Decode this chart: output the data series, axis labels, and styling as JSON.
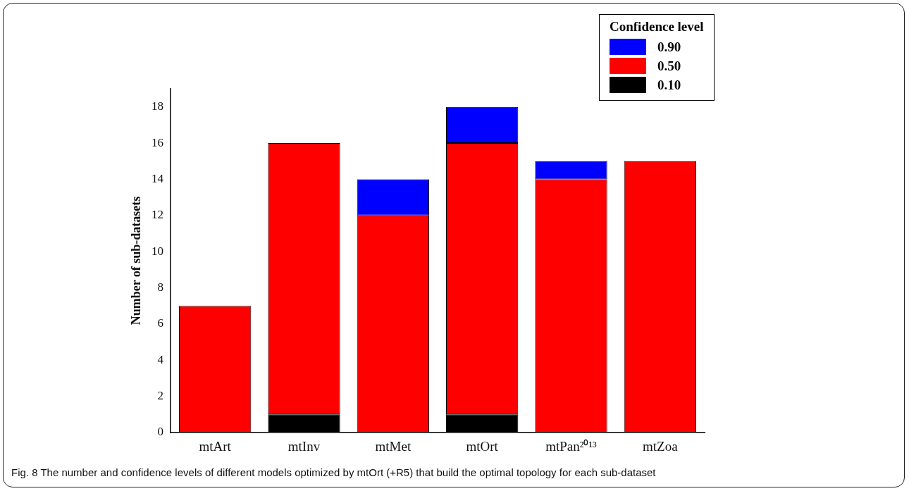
{
  "chart_data": {
    "type": "bar",
    "stacked": true,
    "categories": [
      "mtArt",
      "mtInv",
      "mtMet",
      "mtOrt",
      "mtPan²⁰¹³",
      "mtZoa"
    ],
    "series": [
      {
        "name": "0.10",
        "color": "#000000",
        "values": [
          null,
          1,
          null,
          1,
          null,
          null
        ]
      },
      {
        "name": "0.50",
        "color": "#ff0000",
        "values": [
          7,
          15,
          12,
          15,
          14,
          15
        ]
      },
      {
        "name": "0.90",
        "color": "#0000ff",
        "values": [
          null,
          null,
          2,
          2,
          1,
          null
        ]
      }
    ],
    "ylabel": "Number of sub-datasets",
    "legend_title": "Confidence level",
    "legend": "top right",
    "ylim": [
      0,
      19
    ],
    "yticks": [
      0,
      2,
      4,
      6,
      8,
      10,
      12,
      14,
      16,
      18
    ],
    "grid": false,
    "annotations": [
      "Fig. 8 The number and confidence levels of different models optimized by mtOrt (+R5) that build the optimal topology for each sub-dataset"
    ]
  }
}
